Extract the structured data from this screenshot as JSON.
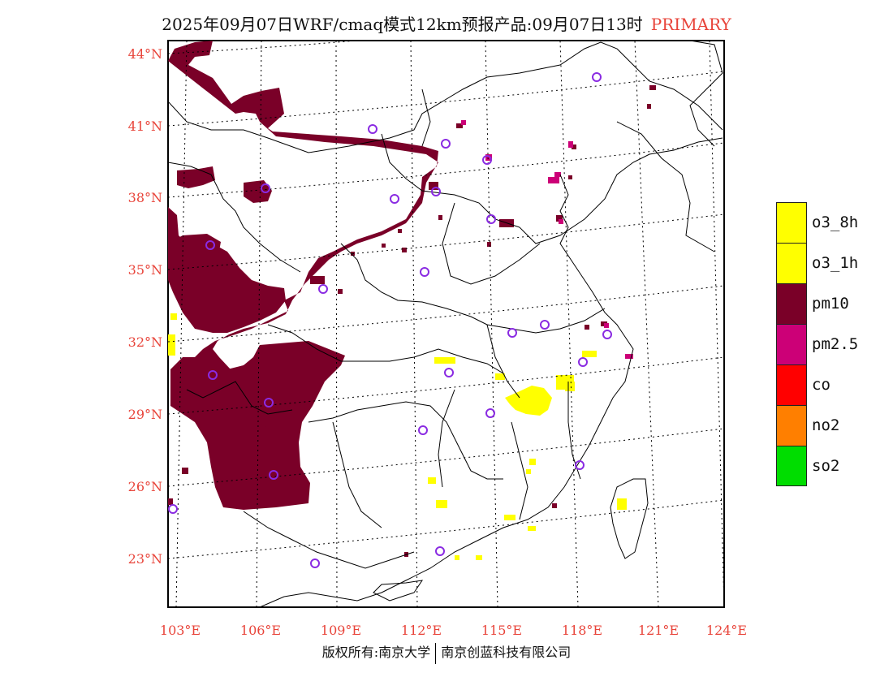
{
  "title": {
    "text": "2025年09月07日WRF/cmaq模式12km预报产品:09月07日13时",
    "tag": "PRIMARY",
    "tag_color": "#e8443a"
  },
  "footer": {
    "left": "版权所有:南京大学",
    "right": "南京创蓝科技有限公司"
  },
  "axes": {
    "lat_labels": [
      "44°N",
      "41°N",
      "38°N",
      "35°N",
      "32°N",
      "29°N",
      "26°N",
      "23°N"
    ],
    "lon_labels": [
      "103°E",
      "106°E",
      "109°E",
      "112°E",
      "115°E",
      "118°E",
      "121°E",
      "124°E"
    ],
    "label_color": "#e8443a"
  },
  "legend": [
    {
      "label": "o3_8h",
      "color": "#ffff00"
    },
    {
      "label": "o3_1h",
      "color": "#ffff00"
    },
    {
      "label": "pm10",
      "color": "#7a0028"
    },
    {
      "label": "pm2.5",
      "color": "#cc0077"
    },
    {
      "label": "co",
      "color": "#ff0000"
    },
    {
      "label": "no2",
      "color": "#ff7f00"
    },
    {
      "label": "so2",
      "color": "#00dd00"
    }
  ],
  "colors": {
    "pm10": "#7a0028",
    "pm25": "#cc0077",
    "o3": "#ffff00",
    "station": "#8a2be2"
  }
}
